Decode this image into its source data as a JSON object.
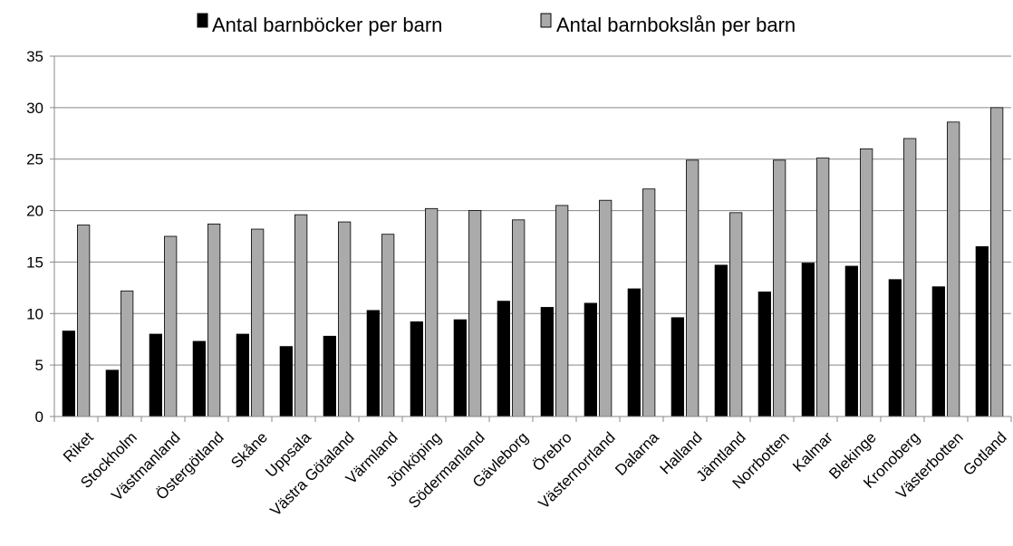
{
  "chart_data": {
    "type": "bar",
    "categories": [
      "Riket",
      "Stockholm",
      "Västmanland",
      "Östergötland",
      "Skåne",
      "Uppsala",
      "Västra Götaland",
      "Värmland",
      "Jönköping",
      "Södermanland",
      "Gävleborg",
      "Örebro",
      "Västernorrland",
      "Dalarna",
      "Halland",
      "Jämtland",
      "Norrbotten",
      "Kalmar",
      "Blekinge",
      "Kronoberg",
      "Västerbotten",
      "Gotland"
    ],
    "series": [
      {
        "name": "Antal barnböcker per barn",
        "color": "#000000",
        "values": [
          8.3,
          4.5,
          8.0,
          7.3,
          8.0,
          6.8,
          7.8,
          10.3,
          9.2,
          9.4,
          11.2,
          10.6,
          11.0,
          12.4,
          9.6,
          14.7,
          12.1,
          14.9,
          14.6,
          13.3,
          12.6,
          16.5
        ]
      },
      {
        "name": "Antal barnbokslån per barn",
        "color": "#aaaaaa",
        "values": [
          18.6,
          12.2,
          17.5,
          18.7,
          18.2,
          19.6,
          18.9,
          17.7,
          20.2,
          20.0,
          19.1,
          20.5,
          21.0,
          22.1,
          24.9,
          19.8,
          24.9,
          25.1,
          26.0,
          27.0,
          28.6,
          30.0
        ]
      }
    ],
    "title": "",
    "xlabel": "",
    "ylabel": "",
    "ylim": [
      0,
      35
    ],
    "yticks": [
      "0",
      "5",
      "10",
      "15",
      "20",
      "25",
      "30",
      "35"
    ],
    "grid": true,
    "legend": "top"
  }
}
